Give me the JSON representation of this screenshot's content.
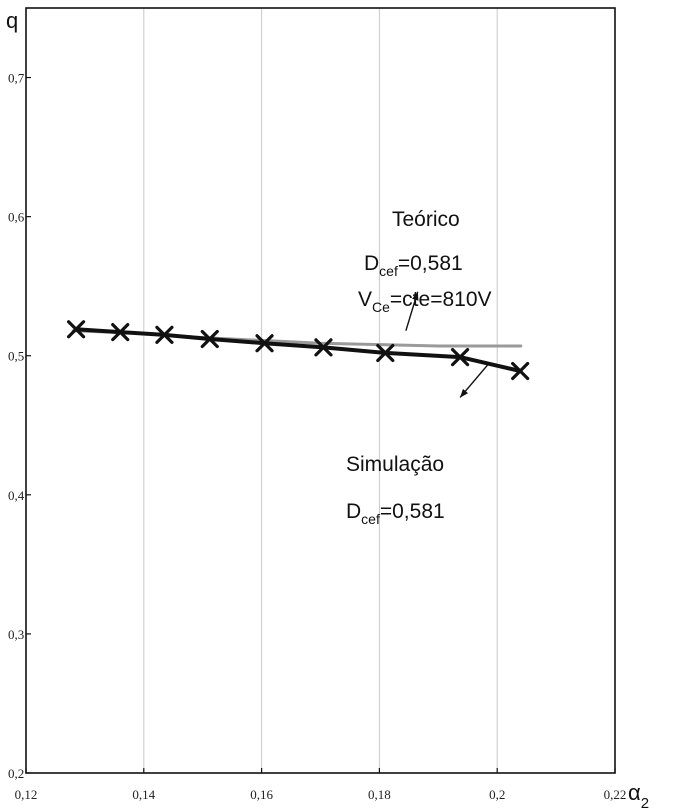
{
  "chart_data": {
    "type": "line",
    "title": "",
    "ylabel": "q",
    "xlabel_symbol": "α",
    "xlabel_subscript": "2",
    "xlim": [
      0.12,
      0.22
    ],
    "ylim": [
      0.2,
      0.75
    ],
    "x_ticks": [
      0.12,
      0.14,
      0.16,
      0.18,
      0.2,
      0.22
    ],
    "x_tick_labels": [
      "0,12",
      "0,14",
      "0,16",
      "0,18",
      "0,2",
      "0,22"
    ],
    "y_ticks": [
      0.2,
      0.3,
      0.4,
      0.5,
      0.6,
      0.7
    ],
    "y_tick_labels": [
      "0,2",
      "0,3",
      "0,4",
      "0,5",
      "0,6",
      "0,7"
    ],
    "grid": "vertical",
    "series": [
      {
        "name": "Teórico",
        "color": "#9a9a9a",
        "marker": "none",
        "x": [
          0.128,
          0.14,
          0.15,
          0.16,
          0.17,
          0.18,
          0.19,
          0.2,
          0.204
        ],
        "y": [
          0.518,
          0.516,
          0.513,
          0.511,
          0.509,
          0.508,
          0.507,
          0.507,
          0.507
        ]
      },
      {
        "name": "Simulação",
        "color": "#111111",
        "marker": "x",
        "x": [
          0.1285,
          0.136,
          0.1435,
          0.1512,
          0.1605,
          0.1705,
          0.181,
          0.1937,
          0.2039
        ],
        "y": [
          0.519,
          0.517,
          0.515,
          0.512,
          0.509,
          0.506,
          0.502,
          0.499,
          0.489
        ]
      }
    ],
    "annotations": {
      "theoretical": {
        "title": "Teórico",
        "line1_main": "D",
        "line1_sub": "cef",
        "line1_rest": "=0,581",
        "line2_main": "V",
        "line2_sub": "Ce",
        "line2_rest": "=cte=810V",
        "arrow_from": [
          0.1845,
          0.518
        ],
        "arrow_to": [
          0.1865,
          0.546
        ]
      },
      "simulation": {
        "title": "Simulação",
        "line1_main": "D",
        "line1_sub": "cef",
        "line1_rest": "=0,581",
        "arrow_from": [
          0.1985,
          0.494
        ],
        "arrow_to": [
          0.1937,
          0.47
        ]
      }
    }
  }
}
